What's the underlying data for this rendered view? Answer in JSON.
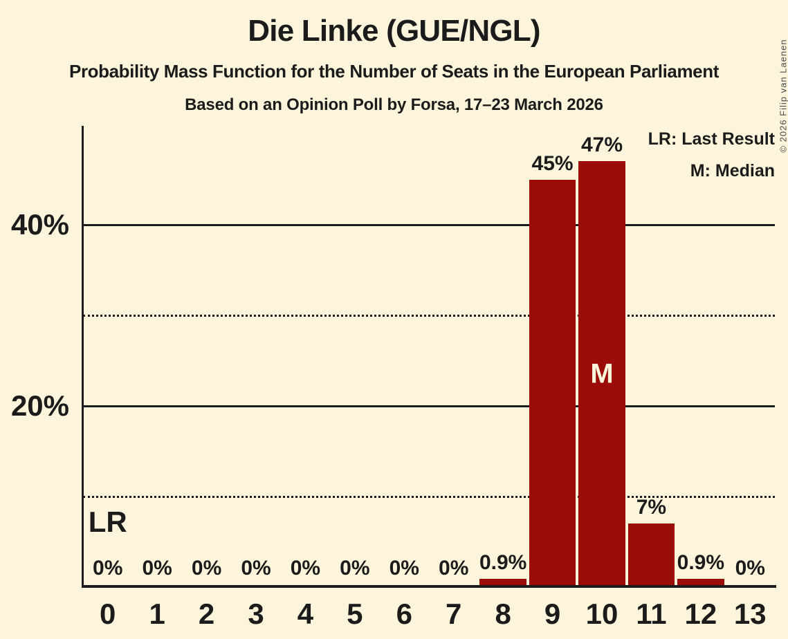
{
  "page": {
    "copyright": "© 2026 Filip van Laenen"
  },
  "chart_data": {
    "type": "bar",
    "title": "Die Linke (GUE/NGL)",
    "subtitle": "Probability Mass Function for the Number of Seats in the European Parliament",
    "poll_info": "Based on an Opinion Poll by Forsa, 17–23 March 2026",
    "xlabel": "",
    "ylabel": "",
    "categories": [
      "0",
      "1",
      "2",
      "3",
      "4",
      "5",
      "6",
      "7",
      "8",
      "9",
      "10",
      "11",
      "12",
      "13"
    ],
    "values": [
      0,
      0,
      0,
      0,
      0,
      0,
      0,
      0,
      0.9,
      45,
      47,
      7,
      0.9,
      0
    ],
    "bar_labels": [
      "0%",
      "0%",
      "0%",
      "0%",
      "0%",
      "0%",
      "0%",
      "0%",
      "0.9%",
      "45%",
      "47%",
      "7%",
      "0.9%",
      "0%"
    ],
    "ylim": [
      0,
      51
    ],
    "yticks": [
      {
        "value": 20,
        "label": "20%"
      },
      {
        "value": 40,
        "label": "40%"
      }
    ],
    "gridlines": [
      {
        "value": 10,
        "style": "dotted"
      },
      {
        "value": 20,
        "style": "solid"
      },
      {
        "value": 30,
        "style": "dotted"
      },
      {
        "value": 40,
        "style": "solid"
      }
    ],
    "annotations": {
      "last_result": {
        "label": "LR",
        "seat": "0"
      },
      "median": {
        "label": "M",
        "seat": "10"
      }
    },
    "legend": [
      "LR: Last Result",
      "M: Median"
    ],
    "legend_position": "top-right",
    "grid": true,
    "colors": {
      "background": "#FCF5DC",
      "bar": "#9B0C08",
      "median_text": "#FCF5DC",
      "axis": "#1b1b1b"
    }
  }
}
